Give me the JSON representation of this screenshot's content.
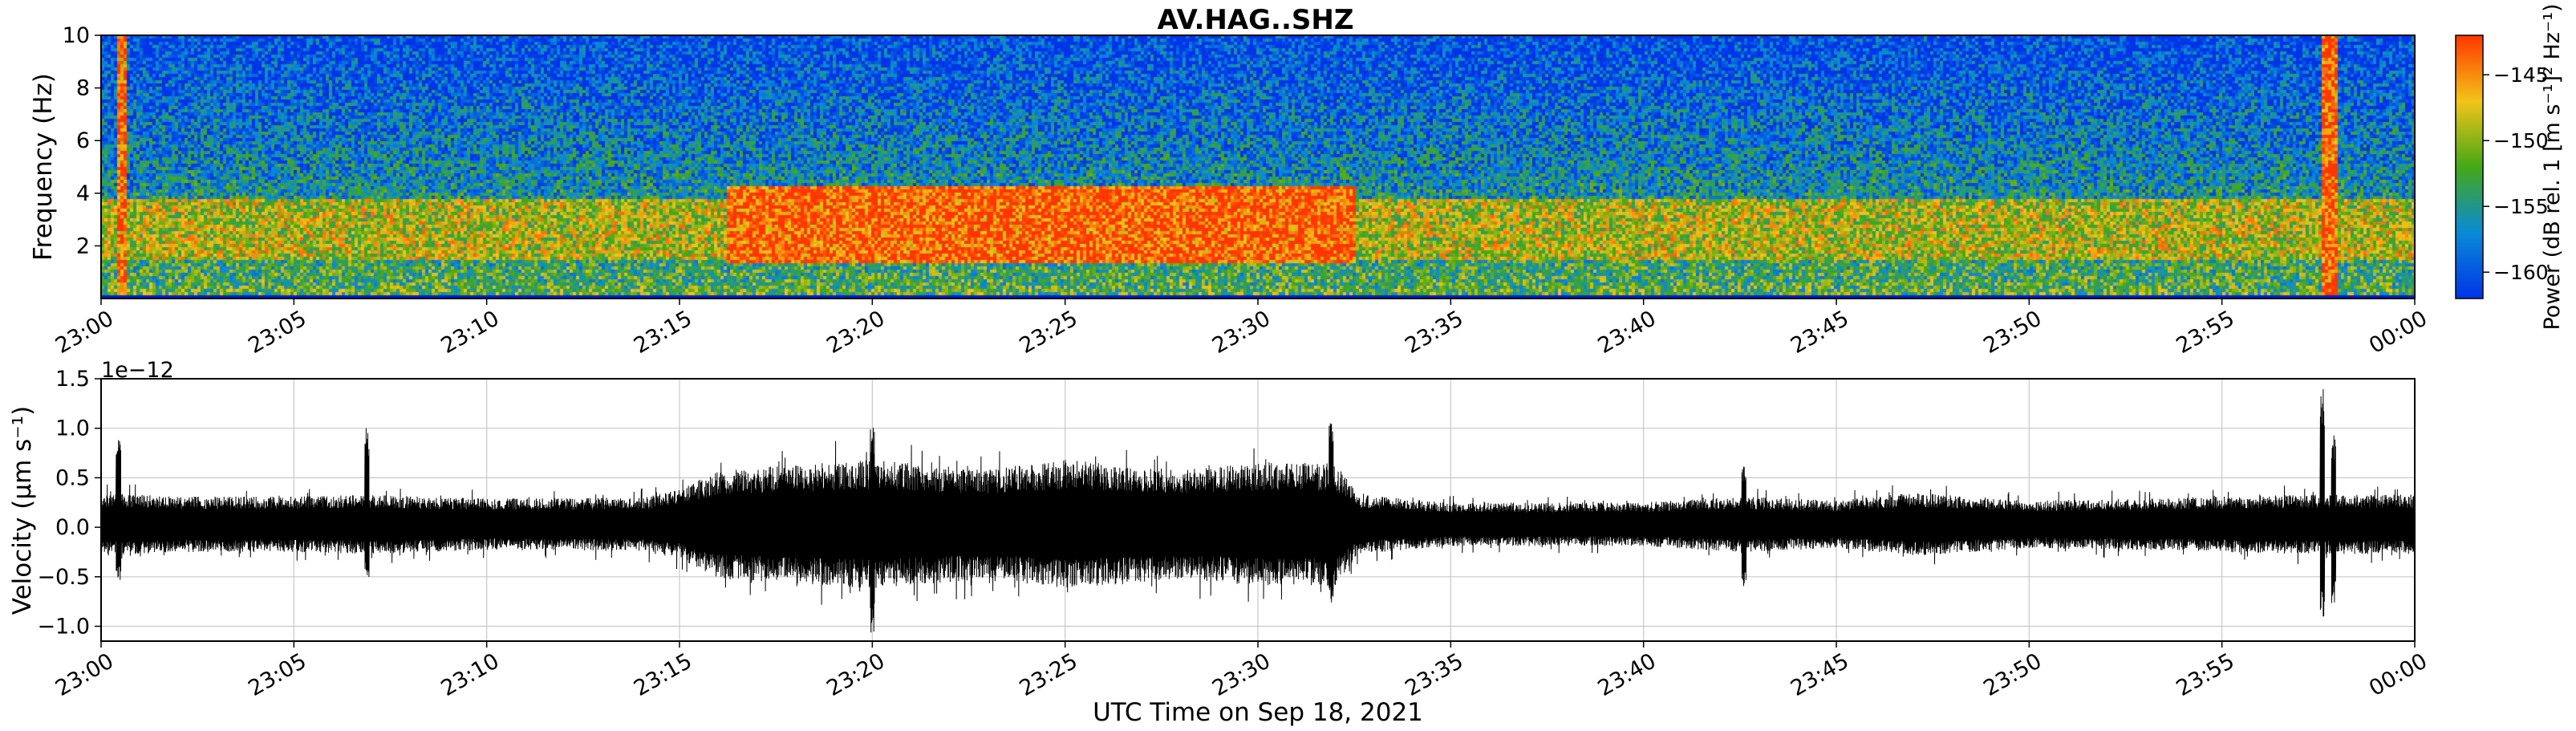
{
  "figure": {
    "title": "AV.HAG..SHZ",
    "xlabel": "UTC Time on Sep 18, 2021"
  },
  "chart_data": [
    {
      "type": "heatmap",
      "title": "AV.HAG..SHZ",
      "ylabel": "Frequency (Hz)",
      "xlim": [
        "23:00",
        "00:00"
      ],
      "ylim": [
        0,
        10
      ],
      "x_ticks": [
        "23:00",
        "23:05",
        "23:10",
        "23:15",
        "23:20",
        "23:25",
        "23:30",
        "23:35",
        "23:40",
        "23:45",
        "23:50",
        "23:55",
        "00:00"
      ],
      "y_ticks": [
        2,
        4,
        6,
        8,
        10
      ],
      "colorbar": {
        "label": "Power (dB rel. 1 [m s⁻¹]² Hz⁻¹)",
        "ticks": [
          -145,
          -150,
          -155,
          -160
        ],
        "range": [
          -162,
          -142
        ],
        "colormap": [
          "#0034e8",
          "#0a8ad6",
          "#45a817",
          "#f2c418",
          "#ff3600"
        ]
      },
      "features": [
        {
          "label": "tremor band",
          "start_min": 16.2,
          "end_min": 32.5,
          "freq_range_hz": [
            1.3,
            4.3
          ],
          "power_db": -143
        },
        {
          "label": "background low-frequency band",
          "freq_range_hz": [
            1.5,
            3.8
          ],
          "power_db": -148
        },
        {
          "label": "transient",
          "start_min": 0.4,
          "end_min": 0.7,
          "power_db": -144
        },
        {
          "label": "transient",
          "start_min": 57.6,
          "end_min": 58.0,
          "power_db": -143
        }
      ]
    },
    {
      "type": "line",
      "ylabel": "Velocity (µm s⁻¹)",
      "offset_text": "1e−12",
      "xlim": [
        "23:00",
        "00:00"
      ],
      "ylim": [
        -1.15,
        1.5
      ],
      "y_ticks": [
        "1.5",
        "1.0",
        "0.5",
        "0.0",
        "−0.5",
        "−1.0"
      ],
      "x_ticks": [
        "23:00",
        "23:05",
        "23:10",
        "23:15",
        "23:20",
        "23:25",
        "23:30",
        "23:35",
        "23:40",
        "23:45",
        "23:50",
        "23:55",
        "00:00"
      ],
      "grid": true,
      "series": [
        {
          "envelope_minutes": [
            0,
            2,
            5,
            7,
            10,
            14,
            15,
            16,
            18,
            20,
            23,
            25,
            28,
            30,
            32,
            32.6,
            35,
            40,
            42.5,
            45,
            47,
            50,
            53,
            55,
            57,
            58,
            60
          ],
          "envelope_amplitude": [
            0.32,
            0.28,
            0.28,
            0.3,
            0.26,
            0.27,
            0.35,
            0.55,
            0.6,
            0.65,
            0.55,
            0.65,
            0.55,
            0.62,
            0.62,
            0.3,
            0.22,
            0.22,
            0.28,
            0.24,
            0.32,
            0.24,
            0.26,
            0.28,
            0.3,
            0.3,
            0.3
          ],
          "spikes": [
            {
              "minute": 0.45,
              "max": 0.9,
              "min": -0.6
            },
            {
              "minute": 6.9,
              "max": 0.98,
              "min": -0.55
            },
            {
              "minute": 20.0,
              "max": 0.98,
              "min": -1.1
            },
            {
              "minute": 31.9,
              "max": 1.05,
              "min": -0.85
            },
            {
              "minute": 42.6,
              "max": 0.6,
              "min": -0.65
            },
            {
              "minute": 57.6,
              "max": 1.38,
              "min": -0.95
            },
            {
              "minute": 57.9,
              "max": 0.9,
              "min": -0.8
            }
          ]
        }
      ]
    }
  ]
}
